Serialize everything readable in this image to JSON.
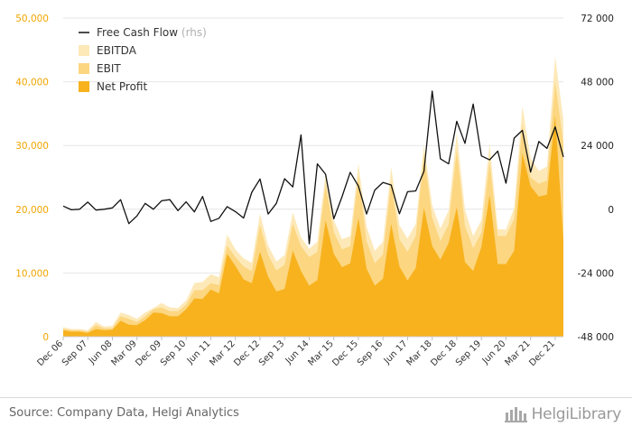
{
  "source": "Source: Company Data, Helgi Analytics",
  "logo": "HelgiLibrary",
  "chart_data": {
    "type": "area",
    "colors": {
      "EBITDA": "#fde9b8",
      "EBIT": "#fcd680",
      "Net Profit": "#f7b21e",
      "Free Cash Flow": "#111111",
      "left_axis_text": "#f0a500"
    },
    "legend": [
      {
        "name": "Free Cash Flow",
        "suffix": "(rhs)",
        "symbol": "line"
      },
      {
        "name": "EBITDA",
        "symbol": "box"
      },
      {
        "name": "EBIT",
        "symbol": "box"
      },
      {
        "name": "Net Profit",
        "symbol": "box"
      }
    ],
    "legend_position": "top-left",
    "yaxis_left": {
      "ticks": [
        "0",
        "10,000",
        "20,000",
        "30,000",
        "40,000",
        "50,000"
      ],
      "ylim": [
        0,
        50000
      ]
    },
    "yaxis_right": {
      "ticks": [
        "-48 000",
        "-24 000",
        "0",
        "24 000",
        "48 000",
        "72 000"
      ],
      "ylim": [
        -48000,
        72000
      ]
    },
    "x_tick_labels": [
      "Dec 06",
      "Sep 07",
      "Jun 08",
      "Mar 09",
      "Dec 09",
      "Sep 10",
      "Jun 11",
      "Mar 12",
      "Dec 12",
      "Sep 13",
      "Jun 14",
      "Mar 15",
      "Dec 15",
      "Sep 16",
      "Jun 17",
      "Mar 18",
      "Dec 18",
      "Sep 19",
      "Jun 20",
      "Mar 21",
      "Dec 21"
    ],
    "x_start": "Dec 06",
    "frequency": "quarterly",
    "series": [
      {
        "name": "EBITDA",
        "area": "stacked-overlay",
        "values": [
          1500,
          1200,
          1200,
          1000,
          2300,
          1600,
          1700,
          3800,
          3400,
          2800,
          3800,
          4500,
          5300,
          4600,
          4500,
          5700,
          8400,
          8600,
          9800,
          9300,
          16000,
          13700,
          12300,
          11600,
          19300,
          14300,
          11800,
          12800,
          19500,
          15600,
          13800,
          14900,
          25600,
          18300,
          15300,
          15800,
          27200,
          17300,
          13500,
          14900,
          26600,
          17500,
          15400,
          17700,
          30100,
          20600,
          17000,
          19800,
          32000,
          19900,
          15800,
          18300,
          30200,
          16900,
          16800,
          20200,
          36200,
          28000,
          26000,
          26700,
          44000,
          34000
        ]
      },
      {
        "name": "EBIT",
        "area": "stacked-overlay",
        "values": [
          1200,
          1000,
          1000,
          800,
          1800,
          1300,
          1300,
          3200,
          2800,
          2300,
          3200,
          4300,
          4600,
          4000,
          4000,
          5000,
          7300,
          7300,
          8400,
          8100,
          14300,
          12500,
          11000,
          10300,
          17500,
          12800,
          10400,
          11300,
          17700,
          14200,
          12500,
          13300,
          23900,
          16400,
          13700,
          14200,
          25300,
          15000,
          11500,
          12900,
          24300,
          15300,
          13300,
          15800,
          28500,
          18700,
          15000,
          17600,
          29300,
          17400,
          13900,
          16300,
          27500,
          15800,
          15800,
          18500,
          33300,
          25000,
          24000,
          24500,
          40000,
          30300
        ]
      },
      {
        "name": "Net Profit",
        "area": "stacked-overlay",
        "values": [
          1000,
          800,
          800,
          600,
          1200,
          1000,
          1100,
          2500,
          1900,
          1800,
          2600,
          3800,
          3700,
          3200,
          3200,
          4300,
          6000,
          5900,
          7400,
          6800,
          13000,
          11100,
          9000,
          8400,
          13300,
          9400,
          7100,
          7500,
          13500,
          10300,
          8000,
          8900,
          18200,
          13000,
          10900,
          11500,
          18600,
          10700,
          8000,
          9100,
          17700,
          11000,
          8800,
          10800,
          20200,
          14200,
          12100,
          14700,
          20300,
          11700,
          10300,
          14100,
          22200,
          11400,
          11400,
          13500,
          28800,
          23600,
          22000,
          22300,
          34700,
          15200
        ]
      },
      {
        "name": "Free Cash Flow",
        "axis": "right",
        "values": [
          1200,
          -200,
          0,
          2700,
          -300,
          0,
          500,
          3600,
          -5400,
          -2500,
          2200,
          0,
          3200,
          3600,
          -500,
          2800,
          -1000,
          4800,
          -4600,
          -3400,
          1000,
          -900,
          -3300,
          6400,
          11400,
          -1800,
          2200,
          11500,
          8400,
          28000,
          -13000,
          17100,
          13200,
          -3600,
          4700,
          13900,
          8700,
          -1800,
          7200,
          10100,
          9100,
          -1700,
          6600,
          6900,
          14300,
          44500,
          19000,
          17100,
          33100,
          24800,
          39600,
          20100,
          18600,
          21900,
          9800,
          26800,
          29700,
          14000,
          25500,
          22900,
          31000,
          19700
        ]
      }
    ]
  }
}
